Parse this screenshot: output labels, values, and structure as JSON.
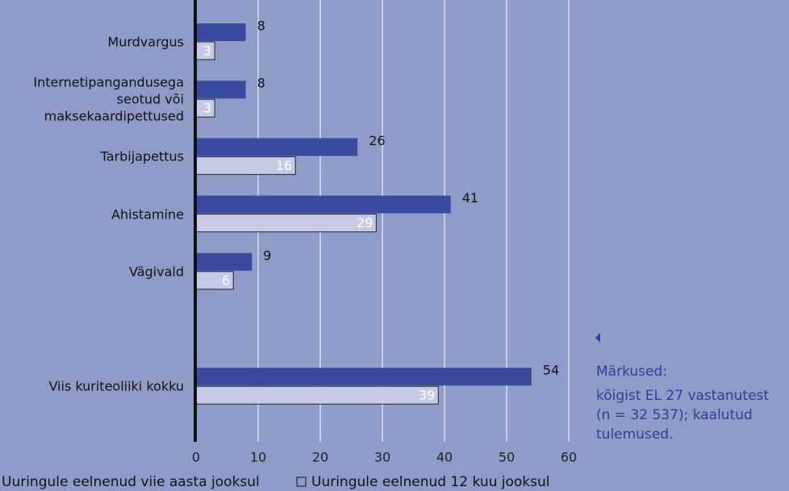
{
  "chart_data": {
    "type": "bar",
    "orientation": "horizontal",
    "categories": [
      "Murdvargus",
      "Internetipangandusega\nseotud või\nmaksekaardipettused",
      "Tarbijapettus",
      "Ahistamine",
      "Vägivald",
      null,
      "Viis kuriteoliiki kokku"
    ],
    "series": [
      {
        "name": "Uuringule eelnenud viie aasta jooksul",
        "color": "#3a4a9e",
        "values": [
          8,
          8,
          26,
          41,
          9,
          null,
          54
        ]
      },
      {
        "name": "Uuringule eelnenud 12 kuu jooksul",
        "color": "#c6cae6",
        "values": [
          3,
          3,
          16,
          29,
          6,
          null,
          39
        ]
      }
    ],
    "xlim": [
      0,
      60
    ],
    "xticks": [
      0,
      10,
      20,
      30,
      40,
      50,
      60
    ],
    "grid": true,
    "notes": {
      "heading": "Märkused:",
      "lines": [
        "kõigist EL 27 vastanutest",
        "(n = 32 537); kaalutud",
        "tulemused."
      ]
    }
  }
}
